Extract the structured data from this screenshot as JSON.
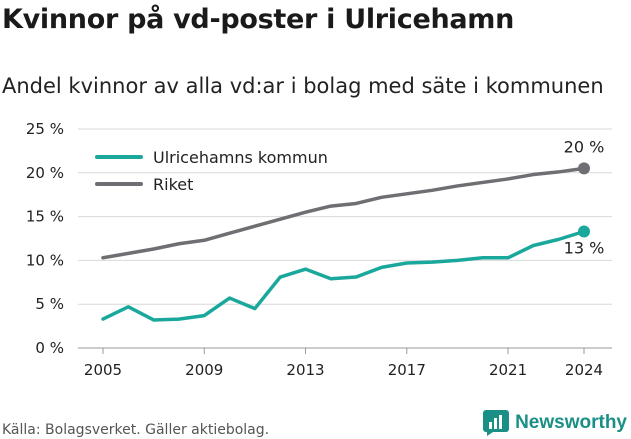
{
  "title": "Kvinnor på vd-poster i Ulricehamn",
  "subtitle": "Andel kvinnor av alla vd:ar i bolag med säte i kommunen",
  "footer": "Källa: Bolagsverket. Gäller aktiebolag.",
  "brand": "Newsworthy",
  "colors": {
    "municipality": "#1aa89c",
    "national": "#6f6e72",
    "grid": "#d9d9d9"
  },
  "chart_data": {
    "type": "line",
    "x": [
      2005,
      2006,
      2007,
      2008,
      2009,
      2010,
      2011,
      2012,
      2013,
      2014,
      2015,
      2016,
      2017,
      2018,
      2019,
      2020,
      2021,
      2022,
      2023,
      2024
    ],
    "series": [
      {
        "name": "Ulricehamns kommun",
        "values": [
          3.3,
          4.7,
          3.2,
          3.3,
          3.7,
          5.7,
          4.5,
          8.1,
          9.0,
          7.9,
          8.1,
          9.2,
          9.7,
          9.8,
          10.0,
          10.3,
          10.3,
          11.7,
          12.4,
          13.3
        ],
        "end_label": "13 %"
      },
      {
        "name": "Riket",
        "values": [
          10.3,
          10.8,
          11.3,
          11.9,
          12.3,
          13.1,
          13.9,
          14.7,
          15.5,
          16.2,
          16.5,
          17.2,
          17.6,
          18.0,
          18.5,
          18.9,
          19.3,
          19.8,
          20.1,
          20.5
        ],
        "end_label": "20 %"
      }
    ],
    "y_ticks": [
      "0 %",
      "5 %",
      "10 %",
      "15 %",
      "20 %",
      "25 %"
    ],
    "x_ticks": [
      "2005",
      "2009",
      "2013",
      "2017",
      "2021",
      "2024"
    ],
    "ylim": [
      0,
      25
    ],
    "xlim": [
      2005,
      2024
    ],
    "grid": true,
    "legend_position": "top-left"
  }
}
